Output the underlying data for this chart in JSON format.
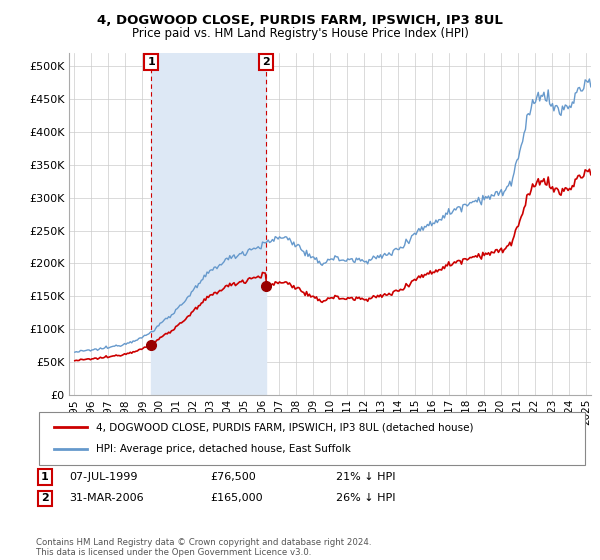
{
  "title": "4, DOGWOOD CLOSE, PURDIS FARM, IPSWICH, IP3 8UL",
  "subtitle": "Price paid vs. HM Land Registry's House Price Index (HPI)",
  "legend_line1": "4, DOGWOOD CLOSE, PURDIS FARM, IPSWICH, IP3 8UL (detached house)",
  "legend_line2": "HPI: Average price, detached house, East Suffolk",
  "footnote": "Contains HM Land Registry data © Crown copyright and database right 2024.\nThis data is licensed under the Open Government Licence v3.0.",
  "sale1_info_date": "07-JUL-1999",
  "sale1_info_price": "£76,500",
  "sale1_info_hpi": "21% ↓ HPI",
  "sale2_info_date": "31-MAR-2006",
  "sale2_info_price": "£165,000",
  "sale2_info_hpi": "26% ↓ HPI",
  "sale1_date": 1999.52,
  "sale1_price": 76500,
  "sale2_date": 2006.25,
  "sale2_price": 165000,
  "hpi_color": "#6699cc",
  "shade_color": "#dde8f5",
  "sale_color": "#cc0000",
  "background_color": "#ffffff",
  "grid_color": "#cccccc",
  "ylim_min": 0,
  "ylim_max": 520000,
  "yticks": [
    0,
    50000,
    100000,
    150000,
    200000,
    250000,
    300000,
    350000,
    400000,
    450000,
    500000
  ],
  "ytick_labels": [
    "£0",
    "£50K",
    "£100K",
    "£150K",
    "£200K",
    "£250K",
    "£300K",
    "£350K",
    "£400K",
    "£450K",
    "£500K"
  ],
  "xlim_min": 1994.7,
  "xlim_max": 2025.3
}
